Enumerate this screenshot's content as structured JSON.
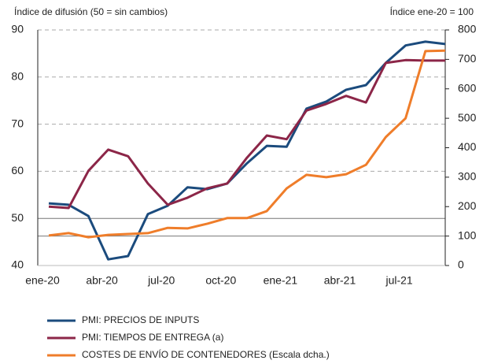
{
  "chart_data": {
    "type": "line",
    "y_axis_label": "Índice de difusión (50 = sin cambios)",
    "y2_axis_label": "Índice ene-20 = 100",
    "categories": [
      "ene-20",
      null,
      null,
      "abr-20",
      null,
      null,
      "jul-20",
      null,
      null,
      "oct-20",
      null,
      null,
      "ene-21",
      null,
      null,
      "abr-21",
      null,
      null,
      "jul-21",
      null,
      null
    ],
    "ylim": [
      40,
      90
    ],
    "yticks": [
      40,
      50,
      60,
      70,
      80,
      90
    ],
    "y2lim": [
      0,
      800
    ],
    "y2ticks": [
      0,
      100,
      200,
      300,
      400,
      500,
      600,
      700,
      800
    ],
    "grid": true,
    "reference_lines": [
      {
        "value": 50,
        "axis": "y"
      },
      {
        "value": 100,
        "axis": "y2"
      }
    ],
    "legend": "bottom",
    "series": [
      {
        "name": "PMI: PRECIOS DE INPUTS",
        "color": "#1b4b7d",
        "values": [
          53.2,
          52.9,
          50.5,
          41.3,
          42.0,
          50.9,
          52.7,
          56.6,
          56.2,
          57.4,
          61.7,
          65.4,
          65.2,
          73.3,
          74.8,
          77.3,
          78.3,
          83.0,
          86.7,
          87.5,
          87.0
        ]
      },
      {
        "name": "PMI: TIEMPOS DE ENTREGA (a)",
        "color": "#8c2648",
        "values": [
          52.5,
          52.2,
          60.1,
          64.6,
          63.2,
          57.4,
          52.9,
          54.4,
          56.4,
          57.4,
          62.9,
          67.6,
          66.8,
          72.9,
          74.3,
          76.0,
          74.6,
          83.0,
          83.6,
          83.5,
          83.5
        ]
      },
      {
        "name": "COSTES DE ENVÍO DE CONTENEDORES (Escala dcha.)",
        "color": "#ef7d2a",
        "axis": "y2",
        "values": [
          102,
          110,
          96,
          104,
          107,
          110,
          128,
          126,
          142,
          161,
          161,
          185,
          262,
          308,
          300,
          310,
          342,
          436,
          500,
          728,
          730
        ]
      }
    ]
  }
}
